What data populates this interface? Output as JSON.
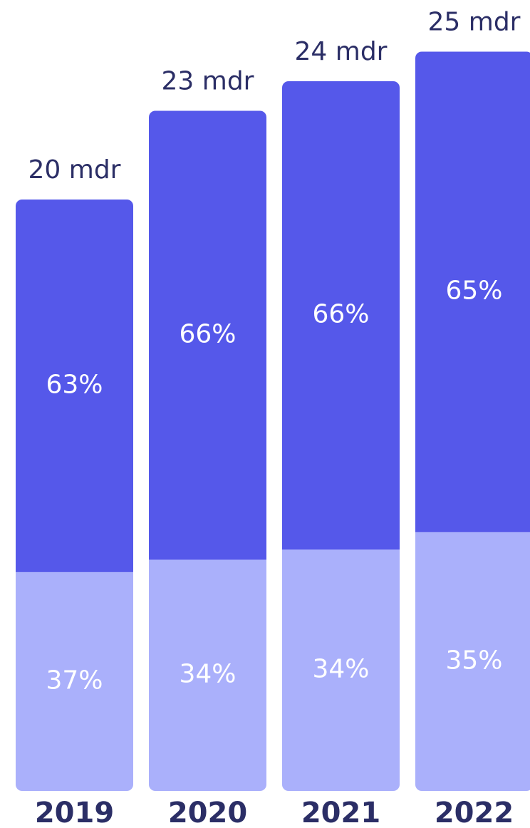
{
  "chart_data": {
    "type": "stacked-bar",
    "categories": [
      "2019",
      "2020",
      "2021",
      "2022"
    ],
    "totals": {
      "values": [
        20,
        23,
        24,
        25
      ],
      "value_labels": [
        "20 mdr",
        "23 mdr",
        "24 mdr",
        "25 mdr"
      ]
    },
    "series": [
      {
        "color": "#aab0fb",
        "values": [
          37,
          34,
          34,
          35
        ],
        "value_labels": [
          "37%",
          "34%",
          "34%",
          "35%"
        ]
      },
      {
        "color": "#5558ea",
        "values": [
          63,
          66,
          66,
          65
        ],
        "value_labels": [
          "63%",
          "66%",
          "66%",
          "65%"
        ]
      }
    ]
  }
}
